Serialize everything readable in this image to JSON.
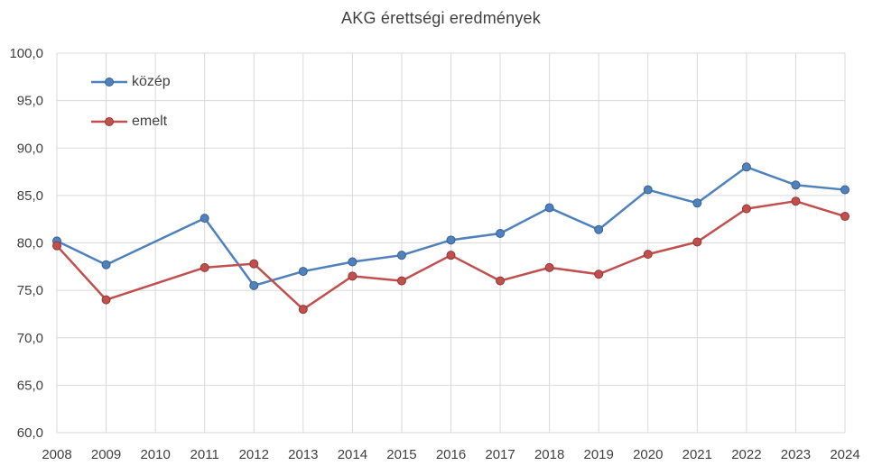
{
  "chart_data": {
    "type": "line",
    "title": "AKG érettségi eredmények",
    "x_categories": [
      "2008",
      "2009",
      "2010",
      "2011",
      "2012",
      "2013",
      "2014",
      "2015",
      "2016",
      "2017",
      "2018",
      "2019",
      "2020",
      "2021",
      "2022",
      "2023",
      "2024"
    ],
    "series": [
      {
        "name": "közép",
        "color": "#4F81BD",
        "marker_border_color": "#3A6191",
        "values": [
          80.2,
          77.7,
          null,
          82.6,
          75.5,
          77.0,
          78.0,
          78.7,
          80.3,
          81.0,
          83.7,
          81.4,
          85.6,
          84.2,
          88.0,
          86.1,
          85.6
        ]
      },
      {
        "name": "emelt",
        "color": "#C0504D",
        "marker_border_color": "#953735",
        "values": [
          79.7,
          74.0,
          null,
          77.4,
          77.8,
          73.0,
          76.5,
          76.0,
          78.7,
          76.0,
          77.4,
          76.7,
          78.8,
          80.1,
          83.6,
          84.4,
          82.8
        ]
      }
    ],
    "ylim": [
      60,
      100
    ],
    "y_tick_step": 5,
    "y_tick_values": [
      60,
      65,
      70,
      75,
      80,
      85,
      90,
      95,
      100
    ],
    "y_tick_labels": [
      "60,0",
      "65,0",
      "70,0",
      "75,0",
      "80,0",
      "85,0",
      "90,0",
      "95,0",
      "100,0"
    ],
    "grid": true,
    "legend_position": "top-left-inside",
    "missing_data_note": "2010 has no data points; lines connect 2009 to 2011"
  },
  "colors": {
    "background": "#FFFFFF",
    "gridline": "#D9D9D9",
    "text": "#404040"
  }
}
